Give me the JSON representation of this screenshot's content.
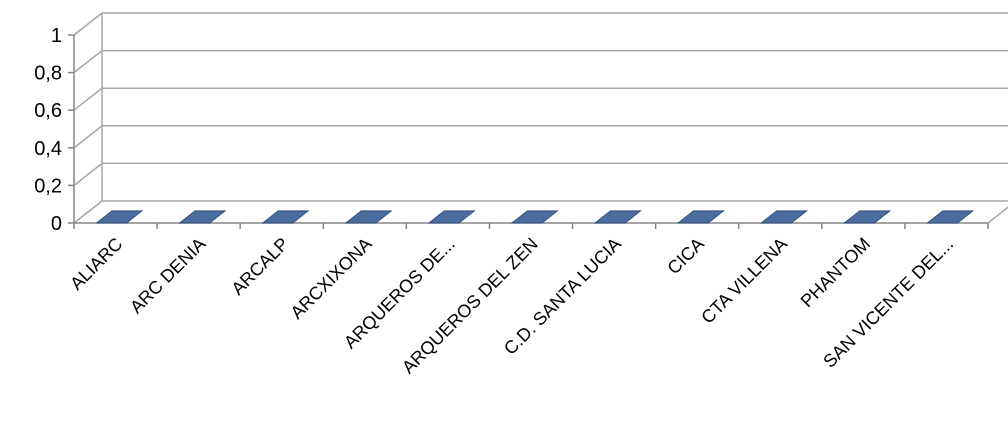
{
  "chart_data": {
    "type": "bar",
    "style": "3d-column",
    "categories": [
      "ALIARC",
      "ARC DENIA",
      "ARCALP",
      "ARCXIXONA",
      "ARQUEROS DE...",
      "ARQUEROS DEL ZEN",
      "C.D. SANTA LUCIA",
      "CICA",
      "CTA VILLENA",
      "PHANTOM",
      "SAN VICENTE DEL..."
    ],
    "values": [
      0,
      0,
      0,
      0,
      0,
      0,
      0,
      0,
      0,
      0,
      0
    ],
    "y_ticks": [
      "0",
      "0,2",
      "0,4",
      "0,6",
      "0,8",
      "1"
    ],
    "ylim": [
      0,
      1
    ],
    "grid": true,
    "legend": "none",
    "title": "",
    "xlabel": "",
    "ylabel": ""
  },
  "colors": {
    "bar_top": "#4a6d9e",
    "bar_edge": "#34527d",
    "gridline": "#a6a6a6",
    "axis": "#868686"
  }
}
